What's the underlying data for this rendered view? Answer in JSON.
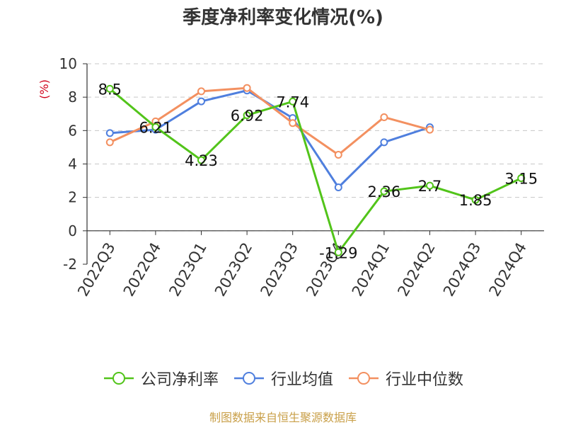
{
  "chart_data": {
    "type": "line",
    "title": "季度净利率变化情况(%)",
    "ylabel": "(%)",
    "xlabel": "",
    "categories": [
      "2022Q3",
      "2022Q4",
      "2023Q1",
      "2023Q2",
      "2023Q3",
      "2023Q4",
      "2024Q1",
      "2024Q2",
      "2024Q3",
      "2024Q4"
    ],
    "ylim": [
      -2,
      10
    ],
    "yticks": [
      -2,
      0,
      2,
      4,
      6,
      8,
      10
    ],
    "grid": true,
    "legend_position": "bottom",
    "series": [
      {
        "name": "公司净利率",
        "color": "#52c41a",
        "values": [
          8.5,
          6.21,
          4.23,
          6.92,
          7.74,
          -1.29,
          2.36,
          2.7,
          1.85,
          3.15
        ],
        "value_labels": [
          "8.5",
          "6.21",
          "4.23",
          "6.92",
          "7.74",
          "-1.29",
          "2.36",
          "2.7",
          "1.85",
          "3.15"
        ]
      },
      {
        "name": "行业均值",
        "color": "#4f7fde",
        "values": [
          5.85,
          6.05,
          7.75,
          8.4,
          6.75,
          2.6,
          5.3,
          6.2,
          null,
          null
        ]
      },
      {
        "name": "行业中位数",
        "color": "#f39060",
        "values": [
          5.3,
          6.55,
          8.35,
          8.55,
          6.45,
          4.55,
          6.8,
          6.05,
          null,
          null
        ]
      }
    ]
  },
  "source_note": "制图数据来自恒生聚源数据库"
}
